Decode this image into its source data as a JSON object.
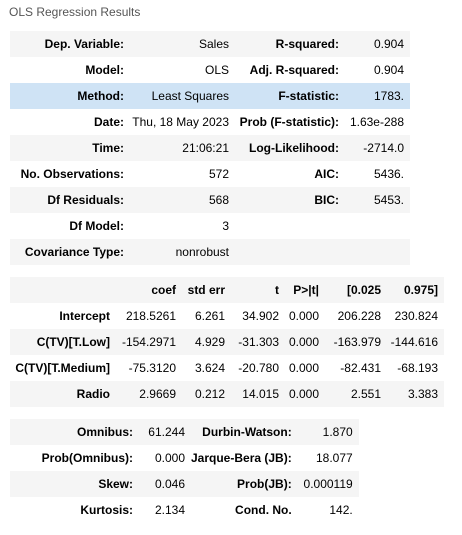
{
  "title": "OLS Regression Results",
  "summary": {
    "rows": [
      [
        "Dep. Variable:",
        "Sales",
        "R-squared:",
        "0.904"
      ],
      [
        "Model:",
        "OLS",
        "Adj. R-squared:",
        "0.904"
      ],
      [
        "Method:",
        "Least Squares",
        "F-statistic:",
        "1783."
      ],
      [
        "Date:",
        "Thu, 18 May 2023",
        "Prob (F-statistic):",
        "1.63e-288"
      ],
      [
        "Time:",
        "21:06:21",
        "Log-Likelihood:",
        "-2714.0"
      ],
      [
        "No. Observations:",
        "572",
        "AIC:",
        "5436."
      ],
      [
        "Df Residuals:",
        "568",
        "BIC:",
        "5453."
      ],
      [
        "Df Model:",
        "3"
      ],
      [
        "Covariance Type:",
        "nonrobust"
      ]
    ]
  },
  "coefficients": {
    "header": [
      "coef",
      "std err",
      "t",
      "P>|t|",
      "[0.025",
      "0.975]"
    ],
    "rows": [
      [
        "Intercept",
        "218.5261",
        "6.261",
        "34.902",
        "0.000",
        "206.228",
        "230.824"
      ],
      [
        "C(TV)[T.Low]",
        "-154.2971",
        "4.929",
        "-31.303",
        "0.000",
        "-163.979",
        "-144.616"
      ],
      [
        "C(TV)[T.Medium]",
        "-75.3120",
        "3.624",
        "-20.780",
        "0.000",
        "-82.431",
        "-68.193"
      ],
      [
        "Radio",
        "2.9669",
        "0.212",
        "14.015",
        "0.000",
        "2.551",
        "3.383"
      ]
    ]
  },
  "diagnostics": {
    "rows": [
      [
        "Omnibus:",
        "61.244",
        "Durbin-Watson:",
        "1.870"
      ],
      [
        "Prob(Omnibus):",
        "0.000",
        "Jarque-Bera (JB):",
        "18.077"
      ],
      [
        "Skew:",
        "0.046",
        "Prob(JB):",
        "0.000119"
      ],
      [
        "Kurtosis:",
        "2.134",
        "Cond. No.",
        "142."
      ]
    ]
  }
}
